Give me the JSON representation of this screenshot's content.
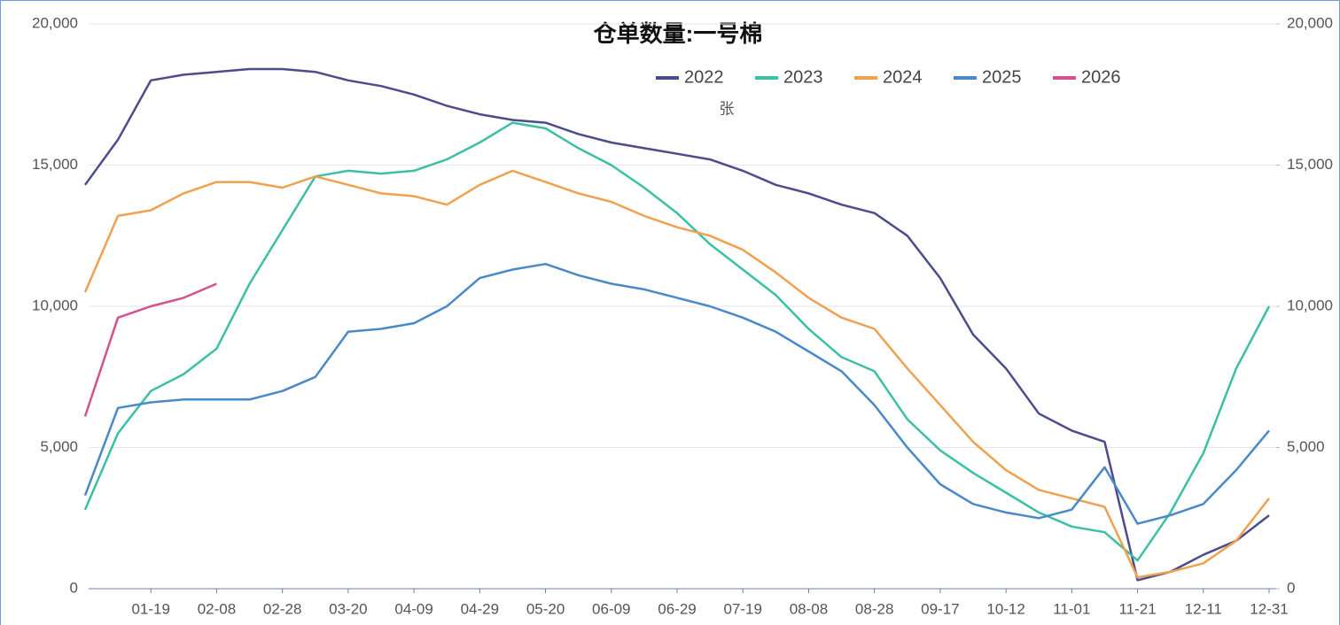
{
  "chart_data": {
    "type": "line",
    "title": "仓单数量:一号棉",
    "y_label": "张",
    "categories": [
      null,
      null,
      "01-19",
      null,
      "02-08",
      null,
      "02-28",
      null,
      "03-20",
      null,
      "04-09",
      null,
      "04-29",
      null,
      "05-20",
      null,
      "06-09",
      null,
      "06-29",
      null,
      "07-19",
      null,
      "08-08",
      null,
      "08-28",
      null,
      "09-17",
      null,
      "10-12",
      null,
      "11-01",
      null,
      "11-21",
      null,
      "12-11",
      null,
      "12-31"
    ],
    "series": [
      {
        "name": "2022",
        "color": "#4c4c8c",
        "values": [
          14300,
          15900,
          18000,
          18200,
          18300,
          18400,
          18400,
          18300,
          18000,
          17800,
          17500,
          17100,
          16800,
          16600,
          16500,
          16100,
          15800,
          15600,
          15400,
          15200,
          14800,
          14300,
          14000,
          13600,
          13300,
          12500,
          11000,
          9000,
          7800,
          6200,
          5600,
          5200,
          300,
          600,
          1200,
          1700,
          2600
        ]
      },
      {
        "name": "2023",
        "color": "#3bbfa5",
        "values": [
          2800,
          5500,
          7000,
          7600,
          8500,
          10800,
          12700,
          14600,
          14800,
          14700,
          14800,
          15200,
          15800,
          16500,
          16300,
          15600,
          15000,
          14200,
          13300,
          12200,
          11300,
          10400,
          9200,
          8200,
          7700,
          6000,
          4900,
          4100,
          3400,
          2700,
          2200,
          2000,
          1000,
          2700,
          4800,
          7800,
          10000
        ]
      },
      {
        "name": "2024",
        "color": "#f0a14f",
        "values": [
          10500,
          13200,
          13400,
          14000,
          14400,
          14400,
          14200,
          14600,
          14300,
          14000,
          13900,
          13600,
          14300,
          14800,
          14400,
          14000,
          13700,
          13200,
          12800,
          12500,
          12000,
          11200,
          10300,
          9600,
          9200,
          7800,
          6500,
          5200,
          4200,
          3500,
          3200,
          2900,
          400,
          600,
          900,
          1700,
          3200
        ]
      },
      {
        "name": "2025",
        "color": "#4a89c8",
        "values": [
          3300,
          6400,
          6600,
          6700,
          6700,
          6700,
          7000,
          7500,
          9100,
          9200,
          9400,
          10000,
          11000,
          11300,
          11500,
          11100,
          10800,
          10600,
          10300,
          10000,
          9600,
          9100,
          8400,
          7700,
          6500,
          5000,
          3700,
          3000,
          2700,
          2500,
          2800,
          4300,
          2300,
          2600,
          3000,
          4200,
          5600
        ]
      },
      {
        "name": "2026",
        "color": "#d4508f",
        "values": [
          6100,
          9600,
          10000,
          10300,
          10800,
          null,
          null,
          null,
          null,
          null,
          null,
          null,
          null,
          null,
          null,
          null,
          null,
          null,
          null,
          null,
          null,
          null,
          null,
          null,
          null,
          null,
          null,
          null,
          null,
          null,
          null,
          null,
          null,
          null,
          null,
          null,
          null
        ]
      }
    ],
    "ylim": [
      0,
      20000
    ],
    "yticks": [
      0,
      {
        "value": 5000,
        "label": "5,000"
      },
      {
        "value": 10000,
        "label": "10,000"
      },
      {
        "value": 15000,
        "label": "15,000"
      },
      {
        "value": 20000,
        "label": "20,000"
      }
    ],
    "y2lim": [
      0,
      20000
    ],
    "y2ticks": [
      0,
      {
        "value": 5000,
        "label": "5,000"
      },
      {
        "value": 10000,
        "label": "10,000"
      },
      {
        "value": 15000,
        "label": "15,000"
      },
      {
        "value": 20000,
        "label": "20,000"
      }
    ],
    "grid": true,
    "legend": "top"
  }
}
